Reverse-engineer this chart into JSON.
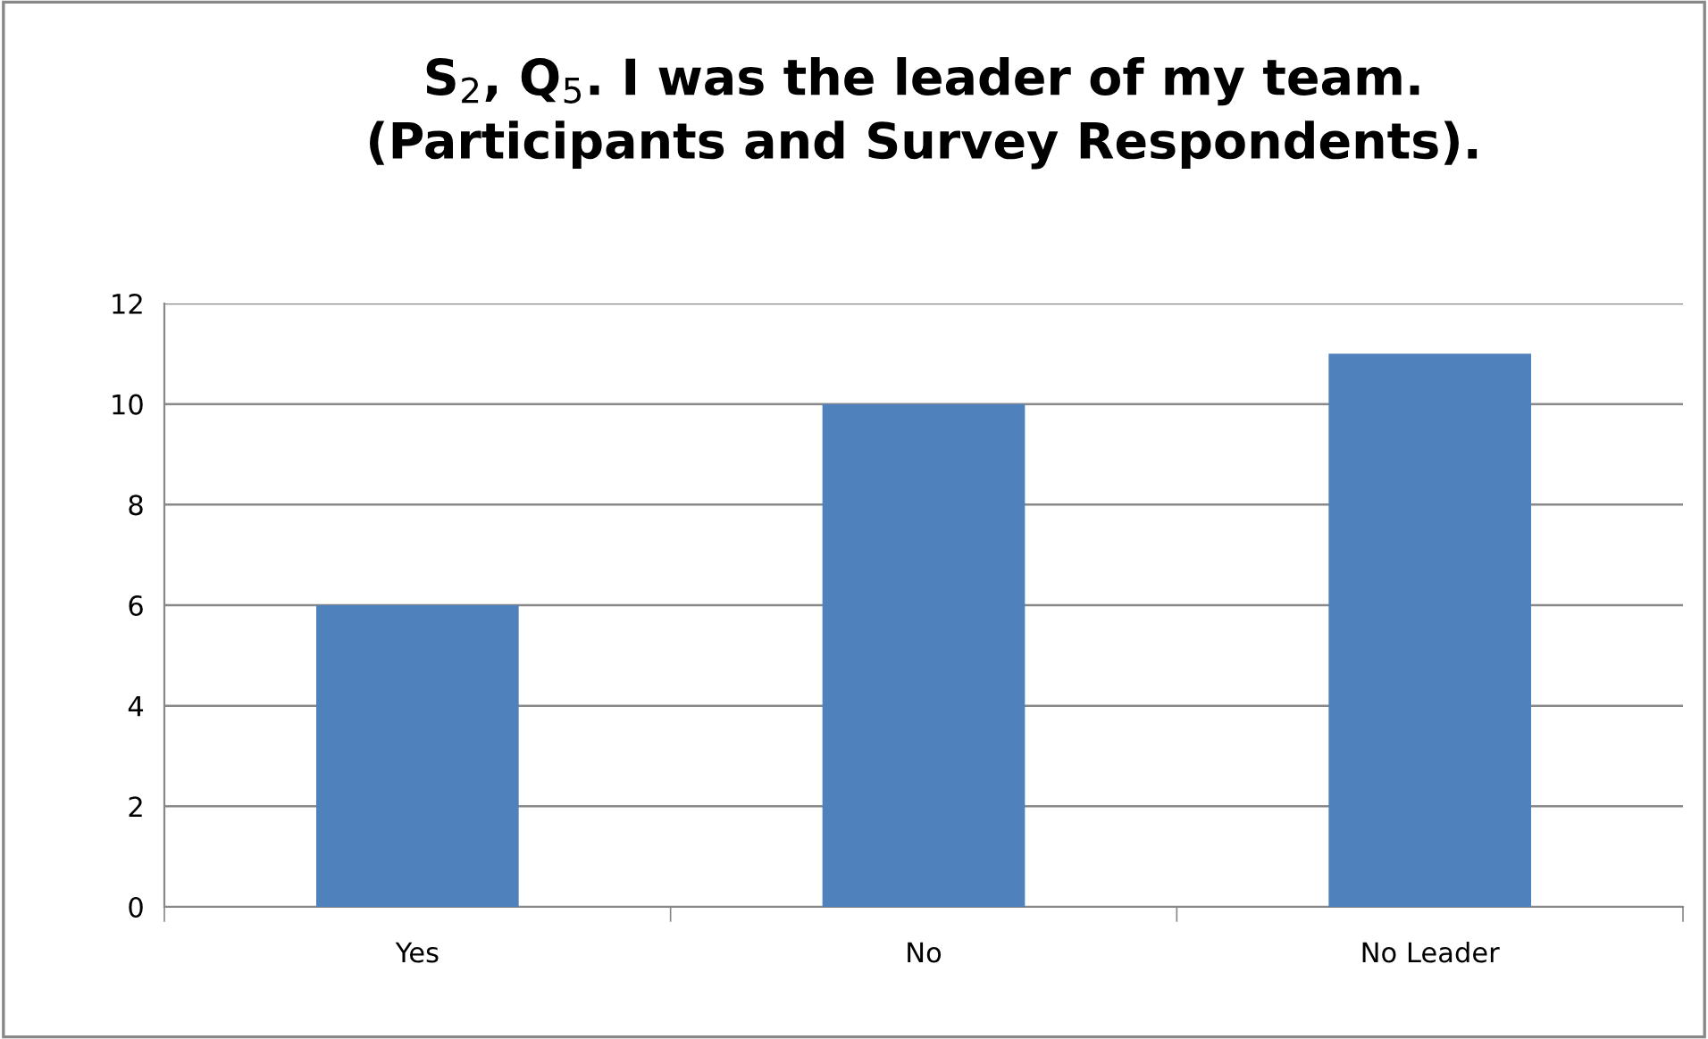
{
  "chart_data": {
    "type": "bar",
    "title": "S$_{2}$, Q$_{5}$. I was the leader of my team.\n(Participants and Survey Respondents).",
    "categories": [
      "Yes",
      "No",
      "No Leader"
    ],
    "values": [
      6,
      10,
      11
    ],
    "color": "#4f81bd",
    "ylim": [
      0,
      12
    ],
    "yticks": [
      0,
      2,
      4,
      6,
      8,
      10,
      12
    ],
    "grid": "y",
    "legend": false
  }
}
